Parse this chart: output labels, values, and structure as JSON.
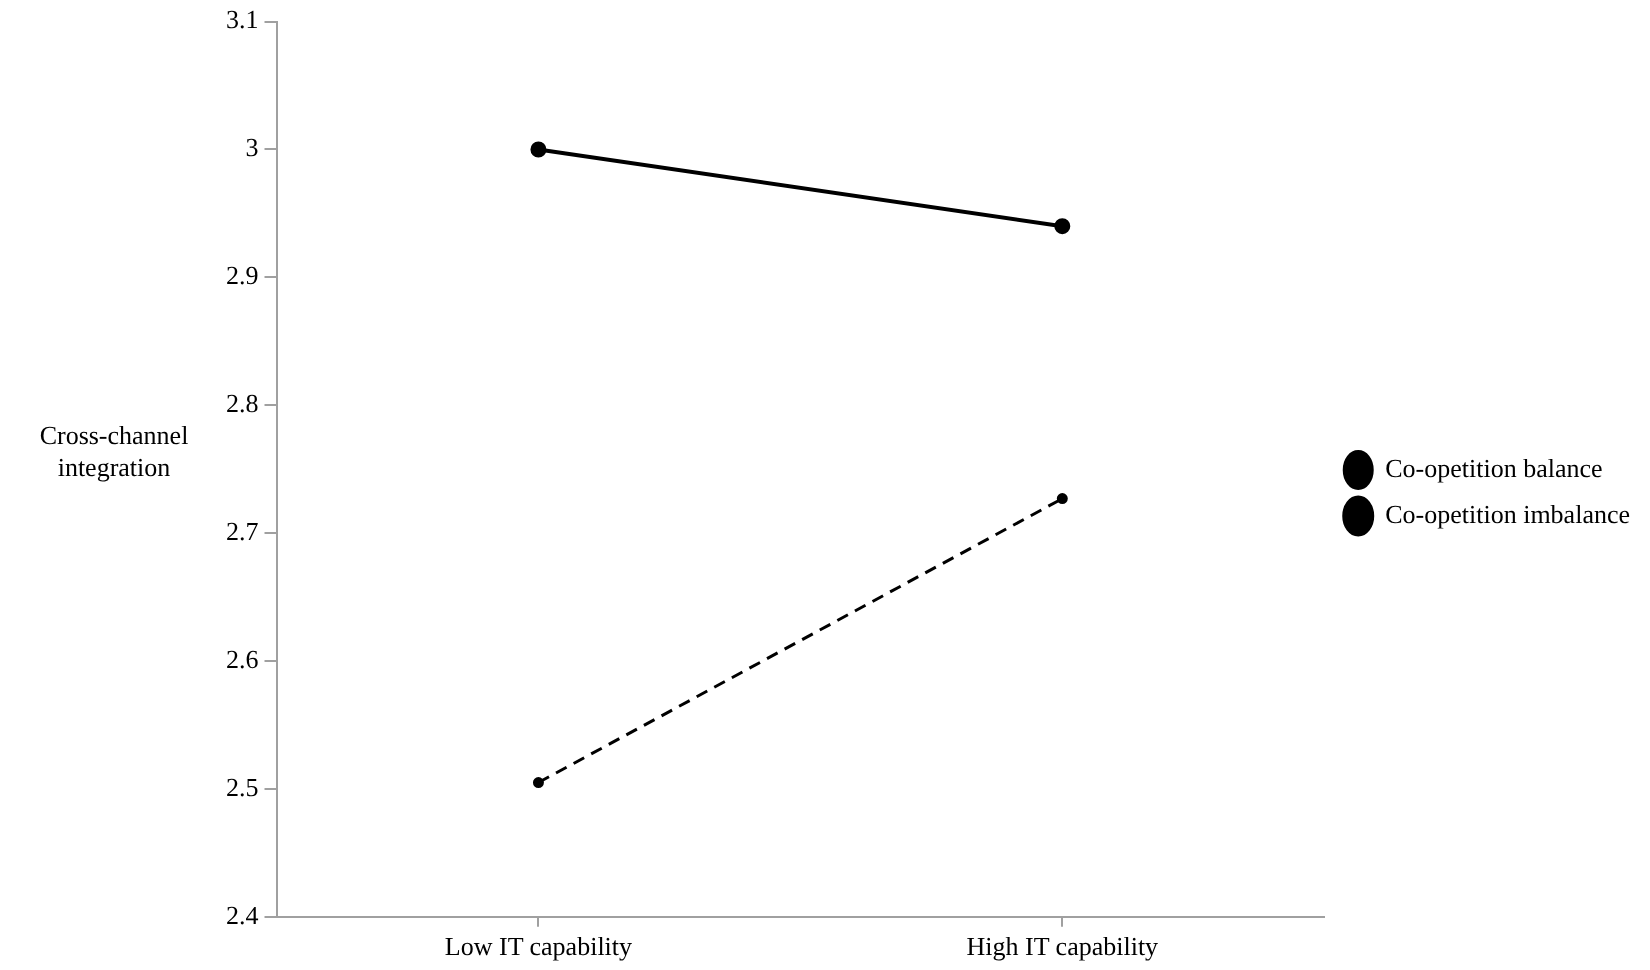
{
  "chart_data": {
    "type": "line",
    "ylabel": "Cross-channel integration",
    "categories": [
      "Low IT capability",
      "High IT capability"
    ],
    "series": [
      {
        "name": "Co-opetition balance",
        "color": "#000000",
        "values": [
          2.505,
          2.727
        ],
        "line_style": "dashed",
        "marker": "circle"
      },
      {
        "name": "Co-opetition imbalance",
        "color": "#000000",
        "values": [
          3.0,
          2.94
        ],
        "line_style": "solid",
        "marker": "circle"
      }
    ],
    "ylim": [
      2.4,
      3.1
    ],
    "yticks": [
      2.4,
      2.5,
      2.6,
      2.7,
      2.8,
      2.9,
      3,
      3.1
    ],
    "grid": false,
    "legend": "right"
  }
}
